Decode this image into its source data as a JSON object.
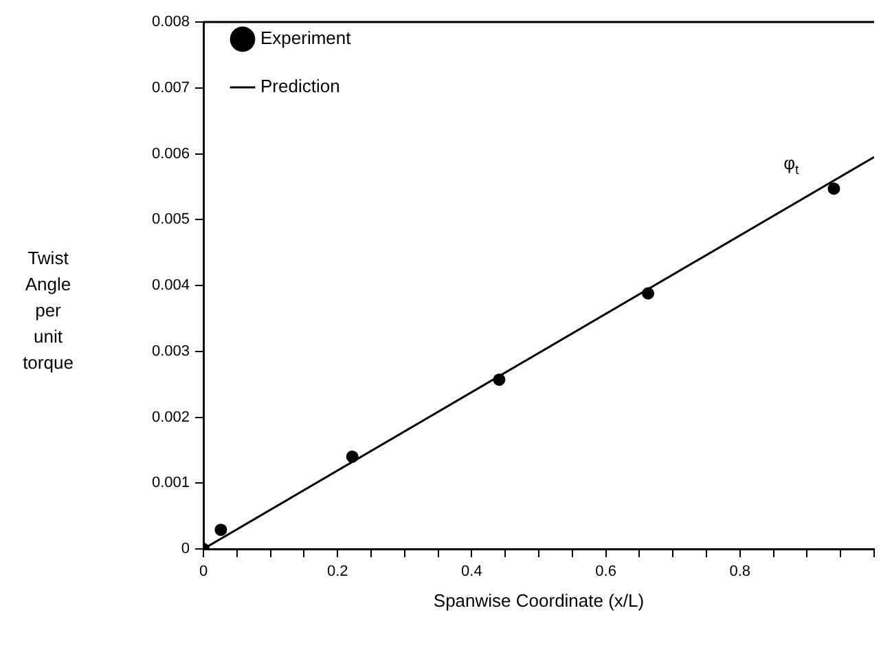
{
  "chart_data": {
    "type": "scatter",
    "xlabel": "Spanwise Coordinate (x/L)",
    "ylabel": "Twist Angle per unit torque",
    "xlim": [
      0,
      1
    ],
    "ylim": [
      0,
      0.008
    ],
    "xticks": [
      0,
      {
        "value": 0.05,
        "label": null
      },
      0.2,
      {
        "value": 0.1,
        "label": null
      },
      {
        "value": 0.15,
        "label": null
      },
      {
        "value": 0.25,
        "label": null
      },
      {
        "value": 0.3,
        "label": null
      },
      {
        "value": 0.35,
        "label": null
      },
      0.4,
      {
        "value": 0.45,
        "label": null
      },
      {
        "value": 0.5,
        "label": null
      },
      {
        "value": 0.55,
        "label": null
      },
      0.6,
      {
        "value": 0.65,
        "label": null
      },
      {
        "value": 0.7,
        "label": null
      },
      {
        "value": 0.75,
        "label": null
      },
      0.8,
      {
        "value": 0.85,
        "label": null
      },
      {
        "value": 0.9,
        "label": null
      },
      {
        "value": 0.95,
        "label": null
      },
      {
        "value": 1,
        "label": null
      }
    ],
    "yticks": [
      0,
      0.001,
      0.002,
      0.003,
      0.004,
      0.005,
      0.006,
      0.007,
      0.008
    ],
    "grid": false,
    "legend": "top left",
    "annotations": [
      "φ$_{t}$"
    ],
    "series": [
      {
        "name": "Experiment",
        "color": "#000000",
        "marker": "circle",
        "x": [
          0,
          0.026,
          0.222,
          0.441,
          0.663,
          0.94
        ],
        "values": [
          0,
          0.00029,
          0.0014,
          0.00257,
          0.00388,
          0.00547
        ]
      },
      {
        "name": "Prediction",
        "type": "line",
        "color": "#000000",
        "marker": "none",
        "line_style": "solid",
        "x": [
          0,
          1
        ],
        "values": [
          0,
          0.00595
        ]
      }
    ]
  }
}
